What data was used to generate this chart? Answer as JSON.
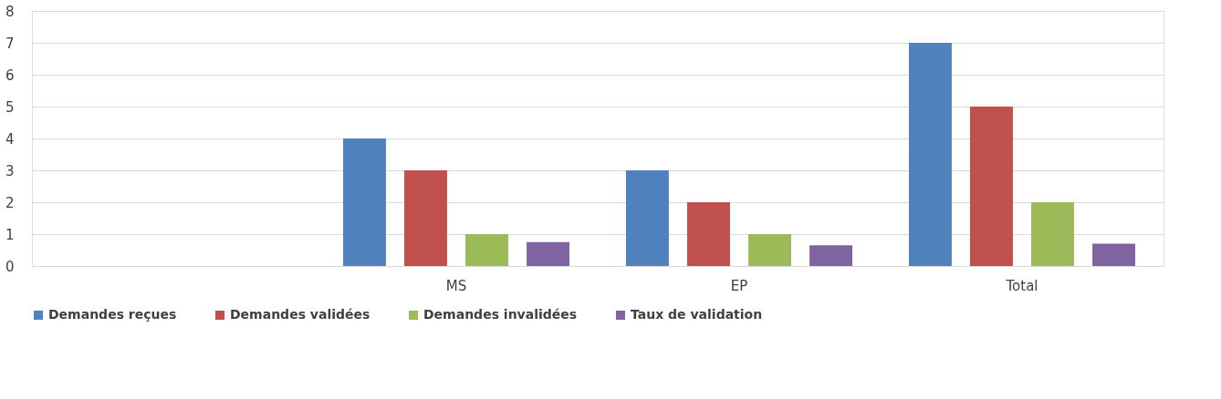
{
  "chart_data": {
    "type": "bar",
    "categories": [
      null,
      "MS",
      "EP",
      "Total"
    ],
    "series": [
      {
        "name": "Demandes reçues",
        "color": "#4f81bd",
        "values": [
          null,
          4,
          3,
          7
        ]
      },
      {
        "name": "Demandes validées",
        "color": "#c0504d",
        "values": [
          null,
          3,
          2,
          5
        ]
      },
      {
        "name": "Demandes invalidées",
        "color": "#9bbb59",
        "values": [
          null,
          1,
          1,
          2
        ]
      },
      {
        "name": "Taux de validation",
        "color": "#8064a2",
        "values": [
          null,
          0.75,
          0.65,
          0.7
        ]
      }
    ],
    "ylim": [
      0,
      8
    ],
    "yticks": [
      0,
      1,
      2,
      3,
      4,
      5,
      6,
      7,
      8
    ],
    "grid": "y",
    "legend": "bottom"
  }
}
